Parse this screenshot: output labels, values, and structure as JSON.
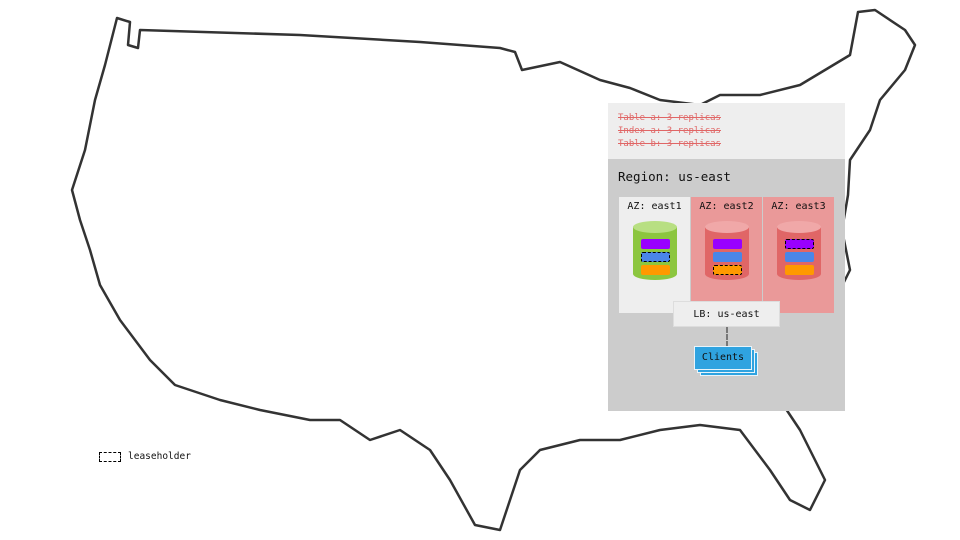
{
  "replica_notes": [
    "Table a: 3 replicas",
    "Index a: 3 replicas",
    "Table b: 3 replicas"
  ],
  "region": {
    "label": "Region: us-east"
  },
  "zones": [
    {
      "label": "AZ: east1",
      "bg": "#eeeeee",
      "cylinder": "#8cc63f",
      "cylinder_top": "#b8df82",
      "leaseholder": [
        false,
        true,
        false
      ]
    },
    {
      "label": "AZ: east2",
      "bg": "#ea9999",
      "cylinder": "#e06666",
      "cylinder_top": "#f0a8a8",
      "leaseholder": [
        false,
        false,
        true
      ]
    },
    {
      "label": "AZ: east3",
      "bg": "#ea9999",
      "cylinder": "#e06666",
      "cylinder_top": "#f0a8a8",
      "leaseholder": [
        true,
        false,
        false
      ]
    }
  ],
  "range_colors": [
    "#9900ff",
    "#4a86e8",
    "#ff9900"
  ],
  "load_balancer": {
    "label": "LB: us-east"
  },
  "clients": {
    "label": "Clients"
  },
  "legend": {
    "label": "leaseholder"
  }
}
